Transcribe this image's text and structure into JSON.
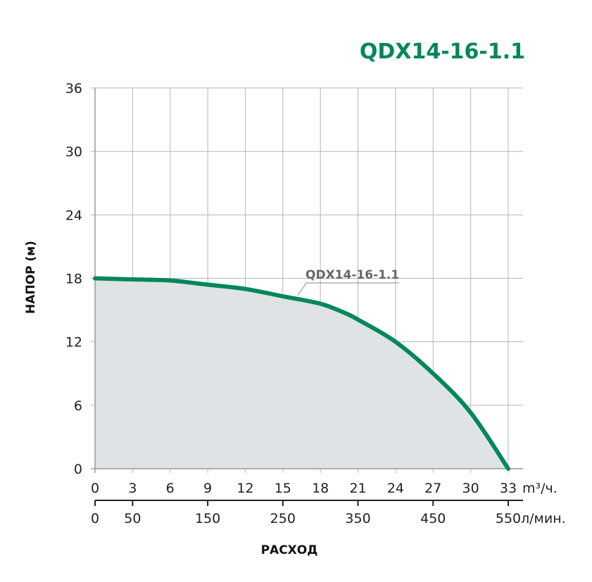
{
  "chart_data": {
    "type": "area",
    "title": "QDX14-16-1.1",
    "ylabel": "НАПОР (м)",
    "xlabel": "РАСХОД",
    "x_unit": "m³/ч.",
    "x2_unit": "л/мин.",
    "xlim": [
      0,
      33
    ],
    "ylim": [
      0,
      36
    ],
    "x_ticks": [
      0,
      3,
      6,
      9,
      12,
      15,
      18,
      21,
      24,
      27,
      30,
      33
    ],
    "y_ticks": [
      0,
      6,
      12,
      18,
      24,
      30,
      36
    ],
    "x2_ticks": [
      0,
      50,
      150,
      250,
      350,
      450,
      550
    ],
    "grid": true,
    "colors": {
      "curve": "#00875a",
      "fill": "#dfe3e5",
      "grid": "#b5b5b5",
      "title": "#00875a"
    },
    "series": [
      {
        "name": "QDX14-16-1.1",
        "x": [
          0,
          3,
          6,
          9,
          12,
          15,
          18,
          20,
          21,
          24,
          27,
          30,
          33
        ],
        "y": [
          18.0,
          17.9,
          17.8,
          17.4,
          17.0,
          16.3,
          15.6,
          14.7,
          14.1,
          12.0,
          9.0,
          5.3,
          0
        ]
      }
    ]
  }
}
